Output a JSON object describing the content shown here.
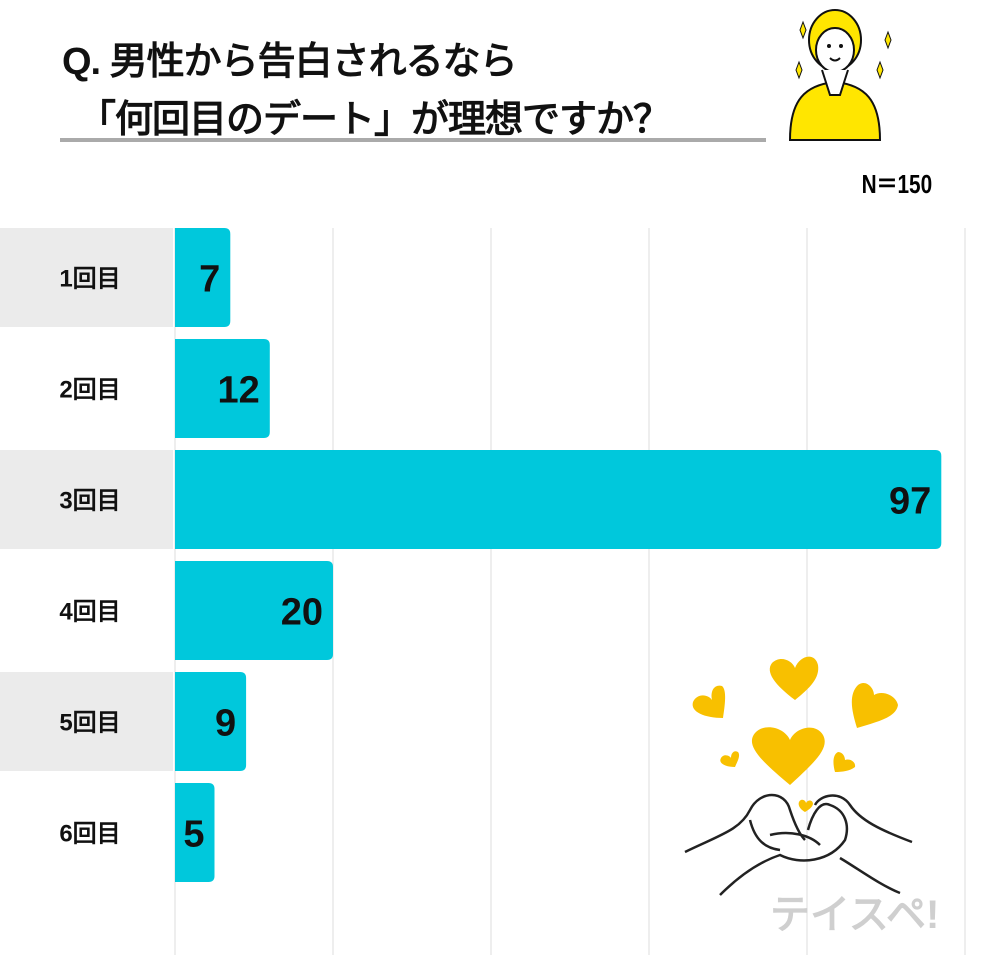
{
  "title_line1": "Q. 男性から告白されるなら",
  "title_line2": "「何回目のデート」が理想ですか？",
  "sample_size": "N＝150",
  "watermark": "テイスペ!",
  "colors": {
    "bar": "#00c8dc",
    "band": "#ebebeb",
    "hearts": "#f8c000",
    "illustration": "#ffe600"
  },
  "chart_data": {
    "type": "bar",
    "orientation": "horizontal",
    "categories": [
      "1回目",
      "2回目",
      "3回目",
      "4回目",
      "5回目",
      "6回目"
    ],
    "values": [
      7,
      12,
      97,
      20,
      9,
      5
    ],
    "xlim": [
      0,
      100
    ],
    "grid": true,
    "data_labels": true
  }
}
